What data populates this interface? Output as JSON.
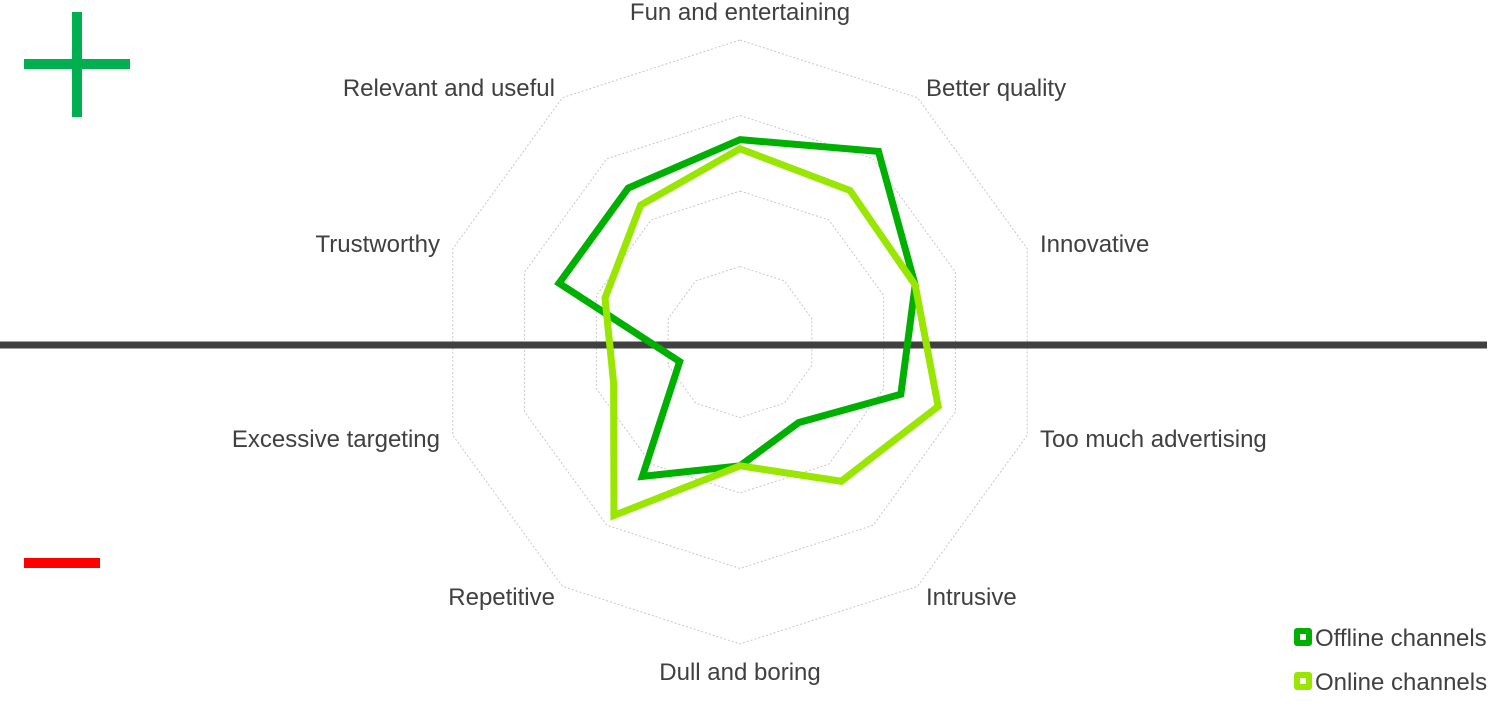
{
  "chart_data": {
    "type": "radar",
    "axes": [
      "Fun and entertaining",
      "Better quality",
      "Innovative",
      "Too much advertising",
      "Intrusive",
      "Dull and boring",
      "Repetitive",
      "Excessive targeting",
      "Trustworthy",
      "Relevant and useful"
    ],
    "rlim": [
      0,
      1
    ],
    "rings": 4,
    "grid": true,
    "legend_position": "bottom-right",
    "series": [
      {
        "name": "Offline channels",
        "color": "#00b000",
        "values": [
          0.67,
          0.78,
          0.61,
          0.56,
          0.33,
          0.41,
          0.55,
          0.21,
          0.63,
          0.63
        ]
      },
      {
        "name": "Online channels",
        "color": "#99e600",
        "values": [
          0.64,
          0.62,
          0.61,
          0.69,
          0.57,
          0.41,
          0.71,
          0.44,
          0.47,
          0.56
        ]
      }
    ],
    "annotations": {
      "plus_icon_color": "#00b050",
      "minus_icon_color": "#ff0000",
      "divider_color": "#404040"
    }
  }
}
